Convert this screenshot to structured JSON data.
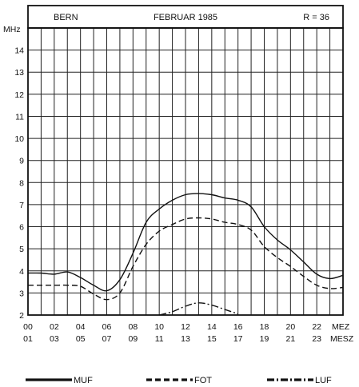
{
  "chart_data": {
    "type": "line",
    "header": {
      "station": "BERN",
      "period": "FEBRUAR 1985",
      "sunspot": "R = 36"
    },
    "ylabel": "MHz",
    "xlabel_top": "MEZ",
    "xlabel_bottom": "MESZ",
    "ylim": [
      2,
      15
    ],
    "xlim": [
      0,
      24
    ],
    "y_ticks": [
      2,
      3,
      4,
      5,
      6,
      7,
      8,
      9,
      10,
      11,
      12,
      13,
      14
    ],
    "x_ticks_top": [
      "00",
      "02",
      "04",
      "06",
      "08",
      "10",
      "12",
      "14",
      "16",
      "18",
      "20",
      "22"
    ],
    "x_ticks_bottom": [
      "01",
      "03",
      "05",
      "07",
      "09",
      "11",
      "13",
      "15",
      "17",
      "19",
      "21",
      "23"
    ],
    "grid": true,
    "legend_position": "bottom",
    "series": [
      {
        "name": "MUF",
        "style": "solid",
        "x": [
          0,
          1,
          2,
          3,
          4,
          5,
          6,
          7,
          8,
          9,
          10,
          11,
          12,
          13,
          14,
          15,
          16,
          17,
          18,
          19,
          20,
          21,
          22,
          23,
          24
        ],
        "y": [
          3.9,
          3.9,
          3.85,
          3.95,
          3.7,
          3.35,
          3.1,
          3.6,
          4.8,
          6.2,
          6.8,
          7.2,
          7.45,
          7.5,
          7.45,
          7.3,
          7.2,
          6.9,
          6.0,
          5.4,
          4.95,
          4.4,
          3.85,
          3.65,
          3.8
        ]
      },
      {
        "name": "FOT",
        "style": "dashed",
        "x": [
          0,
          1,
          2,
          3,
          4,
          5,
          6,
          7,
          8,
          9,
          10,
          11,
          12,
          13,
          14,
          15,
          16,
          17,
          18,
          19,
          20,
          21,
          22,
          23,
          24
        ],
        "y": [
          3.35,
          3.35,
          3.35,
          3.35,
          3.3,
          2.95,
          2.7,
          3.0,
          4.2,
          5.2,
          5.8,
          6.1,
          6.35,
          6.4,
          6.35,
          6.2,
          6.1,
          5.85,
          5.1,
          4.6,
          4.2,
          3.75,
          3.35,
          3.2,
          3.25
        ]
      },
      {
        "name": "LUF",
        "style": "dashdot",
        "x": [
          10,
          11,
          12,
          13,
          14,
          15,
          16
        ],
        "y": [
          2.0,
          2.15,
          2.4,
          2.55,
          2.45,
          2.25,
          2.05
        ]
      }
    ]
  }
}
